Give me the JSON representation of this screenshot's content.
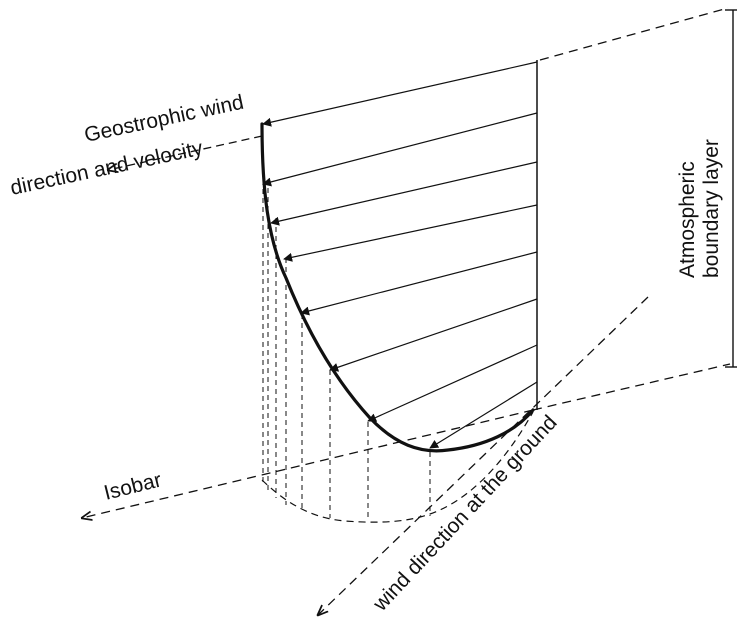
{
  "labels": {
    "geostrophic_line1": "Geostrophic wind",
    "geostrophic_line2": "direction and velocity",
    "boundary_line1": "Atmospheric",
    "boundary_line2": "boundary layer",
    "isobar": "Isobar",
    "ground_wind": "wind direction at the ground"
  },
  "colors": {
    "ink": "#111111",
    "background": "#ffffff"
  }
}
